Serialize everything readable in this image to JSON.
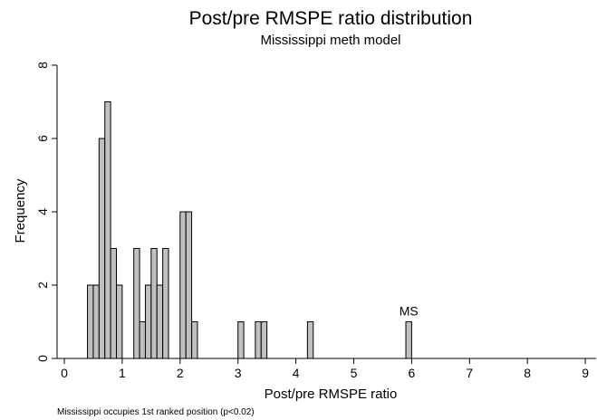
{
  "chart_data": {
    "type": "bar",
    "title": "Post/pre RMSPE ratio distribution",
    "subtitle": "Mississippi meth model",
    "xlabel": "Post/pre RMSPE ratio",
    "ylabel": "Frequency",
    "note": "Mississippi occupies 1st ranked position (p<0.02)",
    "xlim": [
      0,
      9
    ],
    "ylim": [
      0,
      8
    ],
    "xticks": [
      "0",
      "1",
      "2",
      "3",
      "4",
      "5",
      "6",
      "7",
      "8",
      "9"
    ],
    "yticks": [
      "0",
      "2",
      "4",
      "6",
      "8"
    ],
    "bin_width": 0.1,
    "bar_color": "#c0c0c0",
    "bins": [
      {
        "x": 0.45,
        "count": 2
      },
      {
        "x": 0.55,
        "count": 2
      },
      {
        "x": 0.65,
        "count": 6
      },
      {
        "x": 0.75,
        "count": 7
      },
      {
        "x": 0.85,
        "count": 3
      },
      {
        "x": 0.95,
        "count": 2
      },
      {
        "x": 1.25,
        "count": 3
      },
      {
        "x": 1.35,
        "count": 1
      },
      {
        "x": 1.45,
        "count": 2
      },
      {
        "x": 1.55,
        "count": 3
      },
      {
        "x": 1.65,
        "count": 2
      },
      {
        "x": 1.75,
        "count": 3
      },
      {
        "x": 2.05,
        "count": 4
      },
      {
        "x": 2.15,
        "count": 4
      },
      {
        "x": 2.25,
        "count": 1
      },
      {
        "x": 3.05,
        "count": 1
      },
      {
        "x": 3.35,
        "count": 1
      },
      {
        "x": 3.45,
        "count": 1
      },
      {
        "x": 4.25,
        "count": 1
      },
      {
        "x": 5.95,
        "count": 1
      }
    ],
    "annotations": [
      {
        "text": "MS",
        "x": 5.95,
        "y": 1
      }
    ]
  }
}
